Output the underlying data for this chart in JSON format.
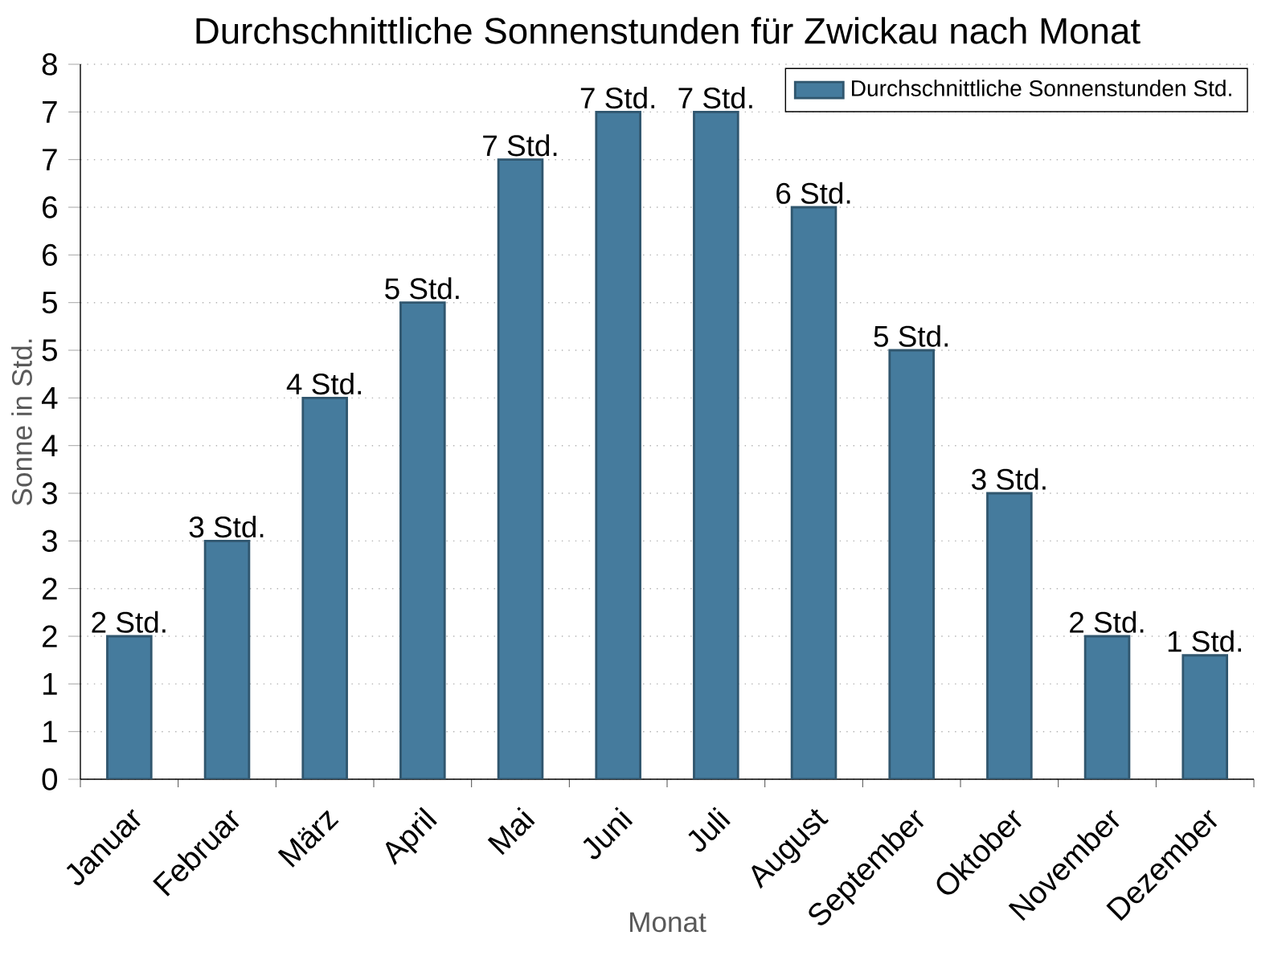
{
  "chart_data": {
    "type": "bar",
    "title": "Durchschnittliche Sonnenstunden für Zwickau nach Monat",
    "xlabel": "Monat",
    "ylabel": "Sonne in Std.",
    "categories": [
      "Januar",
      "Februar",
      "März",
      "April",
      "Mai",
      "Juni",
      "Juli",
      "August",
      "September",
      "Oktober",
      "November",
      "Dezember"
    ],
    "series": [
      {
        "name": "Durchschnittliche Sonnenstunden Std.",
        "color": "#457b9d",
        "values": [
          1.5,
          2.5,
          4.0,
          5.0,
          6.5,
          7.0,
          7.0,
          6.0,
          4.5,
          3.0,
          1.5,
          1.3
        ],
        "value_labels": [
          "2 Std.",
          "3 Std.",
          "4 Std.",
          "5 Std.",
          "7 Std.",
          "7 Std.",
          "7 Std.",
          "6 Std.",
          "5 Std.",
          "3 Std.",
          "2 Std.",
          "1 Std."
        ]
      }
    ],
    "ylim": [
      0,
      7.5
    ],
    "yticks": [
      0,
      {
        "value": 0.5,
        "label": "1"
      },
      1,
      {
        "value": 1.5,
        "label": "2"
      },
      2,
      {
        "value": 2.5,
        "label": "3"
      },
      3,
      {
        "value": 3.5,
        "label": "4"
      },
      4,
      {
        "value": 4.5,
        "label": "5"
      },
      5,
      {
        "value": 5.5,
        "label": "6"
      },
      6,
      {
        "value": 6.5,
        "label": "7"
      },
      7,
      {
        "value": 7.5,
        "label": "8"
      }
    ],
    "grid": "y",
    "legend": "top right"
  }
}
